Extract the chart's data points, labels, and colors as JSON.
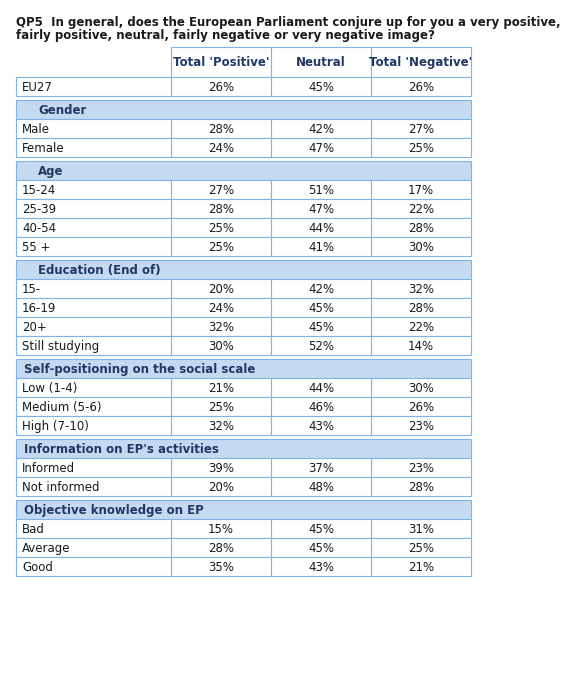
{
  "title_line1": "QP5  In general, does the European Parliament conjure up for you a very positive,",
  "title_line2": "fairly positive, neutral, fairly negative or very negative image?",
  "col_headers": [
    "Total 'Positive'",
    "Neutral",
    "Total 'Negative'"
  ],
  "header_color": "#1F3864",
  "section_bg": "#C5D9F1",
  "section_text_color": "#1F3864",
  "border_color": "#7EB5E5",
  "sections": [
    {
      "name": "EU27",
      "is_section_header": false,
      "icon": false,
      "rows": [
        {
          "label": "EU27",
          "values": [
            "26%",
            "45%",
            "26%"
          ]
        }
      ]
    },
    {
      "name": "Gender",
      "is_section_header": true,
      "icon": true,
      "rows": [
        {
          "label": "Male",
          "values": [
            "28%",
            "42%",
            "27%"
          ]
        },
        {
          "label": "Female",
          "values": [
            "24%",
            "47%",
            "25%"
          ]
        }
      ]
    },
    {
      "name": "Age",
      "is_section_header": true,
      "icon": true,
      "rows": [
        {
          "label": "15-24",
          "values": [
            "27%",
            "51%",
            "17%"
          ]
        },
        {
          "label": "25-39",
          "values": [
            "28%",
            "47%",
            "22%"
          ]
        },
        {
          "label": "40-54",
          "values": [
            "25%",
            "44%",
            "28%"
          ]
        },
        {
          "label": "55 +",
          "values": [
            "25%",
            "41%",
            "30%"
          ]
        }
      ]
    },
    {
      "name": "Education (End of)",
      "is_section_header": true,
      "icon": true,
      "rows": [
        {
          "label": "15-",
          "values": [
            "20%",
            "42%",
            "32%"
          ]
        },
        {
          "label": "16-19",
          "values": [
            "24%",
            "45%",
            "28%"
          ]
        },
        {
          "label": "20+",
          "values": [
            "32%",
            "45%",
            "22%"
          ]
        },
        {
          "label": "Still studying",
          "values": [
            "30%",
            "52%",
            "14%"
          ]
        }
      ]
    },
    {
      "name": "Self-positioning on the social scale",
      "is_section_header": true,
      "icon": false,
      "rows": [
        {
          "label": "Low (1-4)",
          "values": [
            "21%",
            "44%",
            "30%"
          ]
        },
        {
          "label": "Medium (5-6)",
          "values": [
            "25%",
            "46%",
            "26%"
          ]
        },
        {
          "label": "High (7-10)",
          "values": [
            "32%",
            "43%",
            "23%"
          ]
        }
      ]
    },
    {
      "name": "Information on EP's activities",
      "is_section_header": true,
      "icon": false,
      "rows": [
        {
          "label": "Informed",
          "values": [
            "39%",
            "37%",
            "23%"
          ]
        },
        {
          "label": "Not informed",
          "values": [
            "20%",
            "48%",
            "28%"
          ]
        }
      ]
    },
    {
      "name": "Objective knowledge on EP",
      "is_section_header": true,
      "icon": false,
      "rows": [
        {
          "label": "Bad",
          "values": [
            "15%",
            "45%",
            "31%"
          ]
        },
        {
          "label": "Average",
          "values": [
            "28%",
            "45%",
            "25%"
          ]
        },
        {
          "label": "Good",
          "values": [
            "35%",
            "43%",
            "21%"
          ]
        }
      ]
    }
  ],
  "title_fontsize": 8.5,
  "header_fontsize": 8.5,
  "data_fontsize": 8.5,
  "label_fontsize": 8.5,
  "section_fontsize": 8.5
}
